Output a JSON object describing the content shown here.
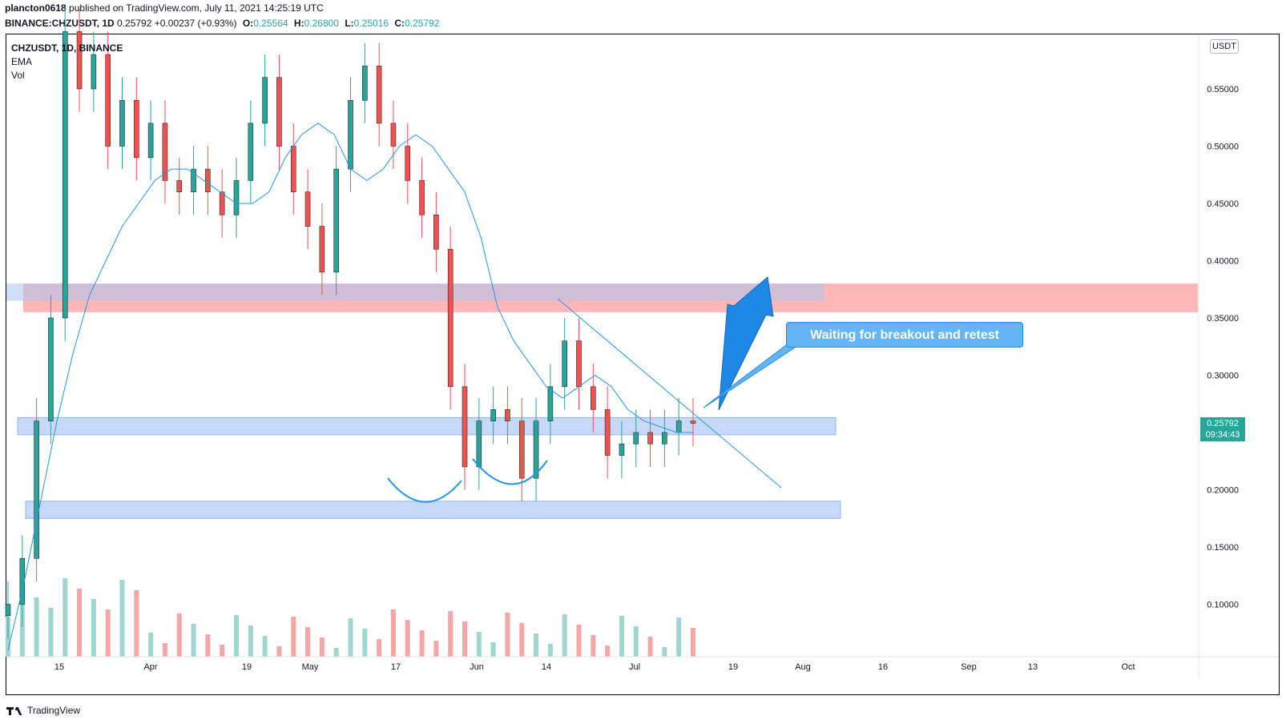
{
  "header": {
    "author": "plancton0618",
    "published_text": "published on TradingView.com, July 11, 2021 14:25:19 UTC",
    "symbol_line": "BINANCE:CHZUSDT, 1D",
    "last": "0.25792",
    "change": "+0.00237 (+0.93%)",
    "o_label": "O:",
    "o": "0.25564",
    "h_label": "H:",
    "h": "0.26800",
    "l_label": "L:",
    "l": "0.25016",
    "c_label": "C:",
    "c": "0.25792"
  },
  "legend": {
    "title": "CHZUSDT, 1D, BINANCE",
    "ema": "EMA",
    "vol": "Vol"
  },
  "currency": "USDT",
  "price_box": {
    "price": "0.25792",
    "countdown": "09:34:43"
  },
  "annotation": {
    "text": "Waiting for breakout and retest"
  },
  "footer": {
    "brand": "TradingView"
  },
  "colors": {
    "up": "#26a69a",
    "down": "#ef5350",
    "ema": "#2196f3",
    "resistance": "#ff9a9a",
    "support": "#a8c7f7",
    "callout": "#64b5f6"
  },
  "chart_data": {
    "type": "candlestick",
    "y_axis_ticks": [
      "0.55000",
      "0.50000",
      "0.45000",
      "0.40000",
      "0.35000",
      "0.30000",
      "0.25000",
      "0.20000",
      "0.15000",
      "0.10000"
    ],
    "x_axis_ticks": [
      "15",
      "Apr",
      "19",
      "May",
      "17",
      "Jun",
      "14",
      "Jul",
      "19",
      "Aug",
      "16",
      "Sep",
      "13",
      "Oct"
    ],
    "series": [
      {
        "name": "EMA",
        "values": [
          0.06,
          0.12,
          0.19,
          0.26,
          0.32,
          0.37,
          0.4,
          0.43,
          0.45,
          0.47,
          0.48,
          0.48,
          0.47,
          0.46,
          0.45,
          0.45,
          0.46,
          0.49,
          0.51,
          0.52,
          0.51,
          0.48,
          0.47,
          0.48,
          0.5,
          0.51,
          0.5,
          0.48,
          0.46,
          0.42,
          0.36,
          0.33,
          0.31,
          0.29,
          0.28,
          0.29,
          0.3,
          0.29,
          0.27,
          0.26,
          0.255,
          0.25,
          0.25
        ]
      },
      {
        "name": "Vol",
        "values": []
      }
    ],
    "zones": [
      {
        "type": "resistance",
        "from": 0.355,
        "to": 0.38
      },
      {
        "type": "support",
        "from": 0.245,
        "to": 0.26
      },
      {
        "type": "support",
        "from": 0.175,
        "to": 0.19
      }
    ],
    "trendline": {
      "from": [
        "Jun 14",
        0.37
      ],
      "to": [
        "Jul 27",
        0.2
      ]
    }
  }
}
